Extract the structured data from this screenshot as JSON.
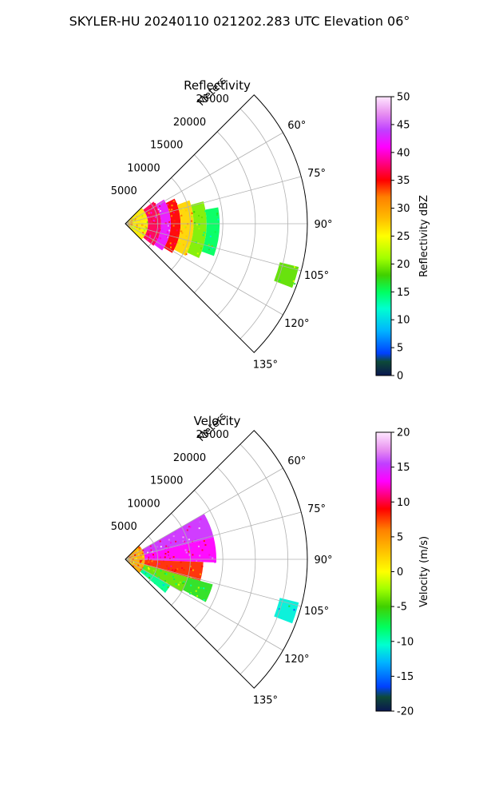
{
  "figure": {
    "suptitle": "SKYLER-HU  20240110  021202.283 UTC Elevation 06°"
  },
  "chart_data": [
    {
      "type": "heatmap",
      "projection": "polar-sector",
      "title": "Reflectivity",
      "range_label": "Meters",
      "range_ticks": [
        5000,
        10000,
        15000,
        20000,
        25000
      ],
      "range_max": 28000,
      "azimuth_range_deg": [
        45,
        135
      ],
      "azimuth_ticks": [
        60,
        75,
        90,
        105,
        120,
        135
      ],
      "azimuth_tick_labels": [
        "60°",
        "75°",
        "90°",
        "105°",
        "120°",
        "135°"
      ],
      "grid": true,
      "colorbar": {
        "label": "Reflectivity dBZ",
        "min": 0,
        "max": 50,
        "ticks": [
          0,
          5,
          10,
          15,
          20,
          25,
          30,
          35,
          40,
          45,
          50
        ],
        "stops": [
          {
            "value": 0,
            "color": "#0a1650"
          },
          {
            "value": 2.5,
            "color": "#0d4a38"
          },
          {
            "value": 4,
            "color": "#0040ff"
          },
          {
            "value": 8,
            "color": "#00b4ff"
          },
          {
            "value": 12,
            "color": "#00ffd0"
          },
          {
            "value": 15,
            "color": "#00ff60"
          },
          {
            "value": 18,
            "color": "#40d000"
          },
          {
            "value": 21,
            "color": "#a0ff00"
          },
          {
            "value": 25,
            "color": "#ffff00"
          },
          {
            "value": 28,
            "color": "#ffc000"
          },
          {
            "value": 32,
            "color": "#ff8000"
          },
          {
            "value": 35,
            "color": "#ff0000"
          },
          {
            "value": 38,
            "color": "#ff0080"
          },
          {
            "value": 41,
            "color": "#ff00ff"
          },
          {
            "value": 44,
            "color": "#c040ff"
          },
          {
            "value": 47,
            "color": "#e890f0"
          },
          {
            "value": 50,
            "color": "#ffe8ff"
          }
        ]
      },
      "echo_bands": [
        {
          "range": [
            0,
            3500
          ],
          "az": [
            46,
            134
          ],
          "value": 26
        },
        {
          "range": [
            3500,
            5500
          ],
          "az": [
            52,
            128
          ],
          "value": 37
        },
        {
          "range": [
            5500,
            7000
          ],
          "az": [
            58,
            126
          ],
          "value": 42
        },
        {
          "range": [
            7000,
            8500
          ],
          "az": [
            63,
            122
          ],
          "value": 35
        },
        {
          "range": [
            8500,
            10500
          ],
          "az": [
            70,
            118
          ],
          "value": 27
        },
        {
          "range": [
            10500,
            12500
          ],
          "az": [
            74,
            115
          ],
          "value": 20
        },
        {
          "range": [
            12500,
            14500
          ],
          "az": [
            80,
            110
          ],
          "value": 15
        },
        {
          "range": [
            24500,
            27500
          ],
          "az": [
            104,
            111
          ],
          "value": 19
        }
      ]
    },
    {
      "type": "heatmap",
      "projection": "polar-sector",
      "title": "Velocity",
      "range_label": "Meters",
      "range_ticks": [
        5000,
        10000,
        15000,
        20000,
        25000
      ],
      "range_max": 28000,
      "azimuth_range_deg": [
        45,
        135
      ],
      "azimuth_ticks": [
        60,
        75,
        90,
        105,
        120,
        135
      ],
      "azimuth_tick_labels": [
        "60°",
        "75°",
        "90°",
        "105°",
        "120°",
        "135°"
      ],
      "grid": true,
      "colorbar": {
        "label": "Velocity (m/s)",
        "min": -20,
        "max": 20,
        "ticks": [
          -20,
          -15,
          -10,
          -5,
          0,
          5,
          10,
          15,
          20
        ],
        "stops": [
          {
            "value": -20,
            "color": "#0a1650"
          },
          {
            "value": -18,
            "color": "#0d4a38"
          },
          {
            "value": -16.5,
            "color": "#0040ff"
          },
          {
            "value": -13,
            "color": "#00b4ff"
          },
          {
            "value": -10.5,
            "color": "#00ffd0"
          },
          {
            "value": -8,
            "color": "#00ff60"
          },
          {
            "value": -5,
            "color": "#40d000"
          },
          {
            "value": -2.5,
            "color": "#a0ff00"
          },
          {
            "value": 0,
            "color": "#ffff00"
          },
          {
            "value": 3,
            "color": "#ffc000"
          },
          {
            "value": 6,
            "color": "#ff8000"
          },
          {
            "value": 9,
            "color": "#ff0000"
          },
          {
            "value": 11,
            "color": "#ff0080"
          },
          {
            "value": 13,
            "color": "#ff00ff"
          },
          {
            "value": 15.5,
            "color": "#c040ff"
          },
          {
            "value": 17.5,
            "color": "#e890f0"
          },
          {
            "value": 20,
            "color": "#ffe8ff"
          }
        ]
      },
      "echo_bands": [
        {
          "range": [
            0,
            3000
          ],
          "az": [
            46,
            134
          ],
          "value": 4
        },
        {
          "range": [
            3000,
            14000
          ],
          "az": [
            60,
            76
          ],
          "value": 15
        },
        {
          "range": [
            3000,
            14000
          ],
          "az": [
            76,
            92
          ],
          "value": 13
        },
        {
          "range": [
            3000,
            12000
          ],
          "az": [
            92,
            106
          ],
          "value": 8
        },
        {
          "range": [
            3000,
            10000
          ],
          "az": [
            106,
            120
          ],
          "value": -4
        },
        {
          "range": [
            3000,
            8000
          ],
          "az": [
            120,
            130
          ],
          "value": -9
        },
        {
          "range": [
            10000,
            14000
          ],
          "az": [
            106,
            118
          ],
          "value": -6
        },
        {
          "range": [
            24500,
            27500
          ],
          "az": [
            104,
            111
          ],
          "value": -11
        }
      ]
    }
  ]
}
